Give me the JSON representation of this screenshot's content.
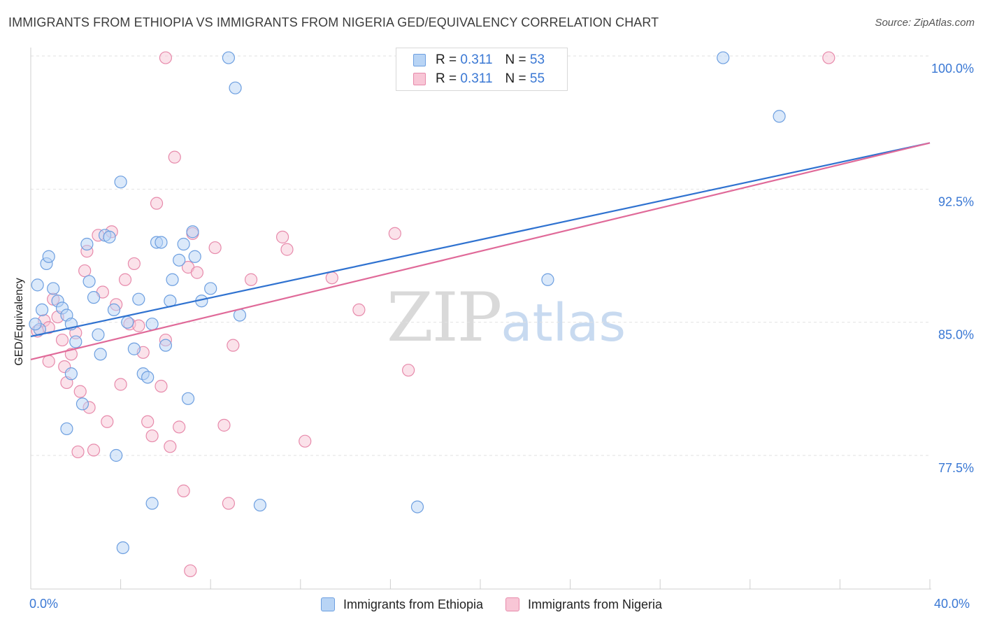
{
  "header": {
    "title": "IMMIGRANTS FROM ETHIOPIA VS IMMIGRANTS FROM NIGERIA GED/EQUIVALENCY CORRELATION CHART",
    "source": "Source: ZipAtlas.com"
  },
  "watermark": {
    "zip": "ZIP",
    "atlas": "atlas"
  },
  "legend": {
    "rows": [
      {
        "r_label": "R =",
        "r_value": "0.311",
        "n_label": "N =",
        "n_value": "53"
      },
      {
        "r_label": "R =",
        "r_value": "0.311",
        "n_label": "N =",
        "n_value": "55"
      }
    ]
  },
  "colors": {
    "ethiopia_fill": "#b8d4f5",
    "ethiopia_stroke": "#6d9fe0",
    "ethiopia_line": "#2f72d0",
    "nigeria_fill": "#f8c6d6",
    "nigeria_stroke": "#e78aab",
    "nigeria_line": "#e06a99",
    "axis_label": "#3a78d4"
  },
  "chart_data": {
    "type": "scatter",
    "title": "IMMIGRANTS FROM ETHIOPIA VS IMMIGRANTS FROM NIGERIA GED/EQUIVALENCY CORRELATION CHART",
    "xlabel": "",
    "ylabel": "GED/Equivalency",
    "xlim": [
      0,
      40
    ],
    "ylim": [
      71.0,
      101.0
    ],
    "x_tick_labels": [
      "0.0%",
      "40.0%"
    ],
    "y_ticks": [
      77.5,
      85.0,
      92.5,
      100.0
    ],
    "y_tick_labels": [
      "77.5%",
      "85.0%",
      "92.5%",
      "100.0%"
    ],
    "grid": true,
    "legend_position": "top-center",
    "series": [
      {
        "name": "Immigrants from Ethiopia",
        "r": 0.311,
        "n": 53,
        "trend": {
          "x": [
            0,
            40
          ],
          "y": [
            84.2,
            95.1
          ]
        },
        "points": [
          [
            0.3,
            87.1
          ],
          [
            0.5,
            85.7
          ],
          [
            0.4,
            84.6
          ],
          [
            0.2,
            84.9
          ],
          [
            0.7,
            88.3
          ],
          [
            0.8,
            88.7
          ],
          [
            1.0,
            86.9
          ],
          [
            1.2,
            86.2
          ],
          [
            1.4,
            85.8
          ],
          [
            1.6,
            85.4
          ],
          [
            1.8,
            84.9
          ],
          [
            2.0,
            83.9
          ],
          [
            1.8,
            82.1
          ],
          [
            2.3,
            80.4
          ],
          [
            2.5,
            89.4
          ],
          [
            2.6,
            87.3
          ],
          [
            2.8,
            86.4
          ],
          [
            3.0,
            84.3
          ],
          [
            3.1,
            83.2
          ],
          [
            3.3,
            89.9
          ],
          [
            3.5,
            89.8
          ],
          [
            3.7,
            85.7
          ],
          [
            4.0,
            92.9
          ],
          [
            4.3,
            85.0
          ],
          [
            4.6,
            83.5
          ],
          [
            4.8,
            86.3
          ],
          [
            5.0,
            82.1
          ],
          [
            5.2,
            81.9
          ],
          [
            5.4,
            84.9
          ],
          [
            5.6,
            89.5
          ],
          [
            5.8,
            89.5
          ],
          [
            6.0,
            83.7
          ],
          [
            6.2,
            86.2
          ],
          [
            6.3,
            87.4
          ],
          [
            6.6,
            88.5
          ],
          [
            6.8,
            89.4
          ],
          [
            7.0,
            80.7
          ],
          [
            7.2,
            90.1
          ],
          [
            7.3,
            88.7
          ],
          [
            8.0,
            86.9
          ],
          [
            8.8,
            99.9
          ],
          [
            9.1,
            98.2
          ],
          [
            9.3,
            85.4
          ],
          [
            10.2,
            74.7
          ],
          [
            1.6,
            79.0
          ],
          [
            3.8,
            77.5
          ],
          [
            5.4,
            74.8
          ],
          [
            4.1,
            72.3
          ],
          [
            17.2,
            74.6
          ],
          [
            23.0,
            87.4
          ],
          [
            30.8,
            99.9
          ],
          [
            33.3,
            96.6
          ],
          [
            7.6,
            86.2
          ]
        ]
      },
      {
        "name": "Immigrants from Nigeria",
        "r": 0.311,
        "n": 55,
        "trend": {
          "x": [
            0,
            40
          ],
          "y": [
            82.9,
            95.1
          ]
        },
        "points": [
          [
            0.3,
            84.5
          ],
          [
            0.6,
            85.1
          ],
          [
            0.8,
            84.7
          ],
          [
            0.8,
            82.8
          ],
          [
            1.0,
            86.3
          ],
          [
            1.2,
            85.3
          ],
          [
            1.4,
            84.0
          ],
          [
            1.5,
            82.5
          ],
          [
            1.6,
            81.6
          ],
          [
            1.8,
            83.2
          ],
          [
            2.0,
            84.4
          ],
          [
            2.2,
            81.1
          ],
          [
            2.4,
            87.9
          ],
          [
            2.5,
            89.0
          ],
          [
            2.6,
            80.2
          ],
          [
            2.8,
            77.8
          ],
          [
            3.0,
            89.9
          ],
          [
            3.2,
            86.7
          ],
          [
            3.4,
            79.4
          ],
          [
            3.6,
            90.1
          ],
          [
            3.8,
            86.0
          ],
          [
            4.0,
            81.5
          ],
          [
            4.2,
            87.4
          ],
          [
            4.4,
            84.9
          ],
          [
            4.6,
            88.3
          ],
          [
            4.8,
            84.8
          ],
          [
            5.0,
            83.3
          ],
          [
            5.2,
            79.4
          ],
          [
            5.4,
            78.6
          ],
          [
            5.6,
            91.7
          ],
          [
            5.8,
            81.4
          ],
          [
            6.0,
            84.0
          ],
          [
            6.2,
            78.0
          ],
          [
            6.4,
            94.3
          ],
          [
            6.6,
            79.1
          ],
          [
            6.8,
            75.5
          ],
          [
            7.0,
            88.1
          ],
          [
            7.2,
            90.0
          ],
          [
            7.4,
            87.8
          ],
          [
            8.2,
            89.2
          ],
          [
            8.6,
            79.2
          ],
          [
            8.8,
            74.8
          ],
          [
            9.0,
            83.7
          ],
          [
            9.8,
            87.4
          ],
          [
            11.2,
            89.8
          ],
          [
            11.4,
            89.1
          ],
          [
            12.2,
            78.3
          ],
          [
            13.4,
            87.5
          ],
          [
            14.6,
            85.7
          ],
          [
            16.2,
            90.0
          ],
          [
            16.8,
            82.3
          ],
          [
            6.0,
            99.9
          ],
          [
            7.1,
            71.0
          ],
          [
            35.5,
            99.9
          ],
          [
            2.1,
            77.7
          ]
        ]
      }
    ]
  },
  "axes": {
    "x_left_label": "0.0%",
    "x_right_label": "40.0%"
  }
}
